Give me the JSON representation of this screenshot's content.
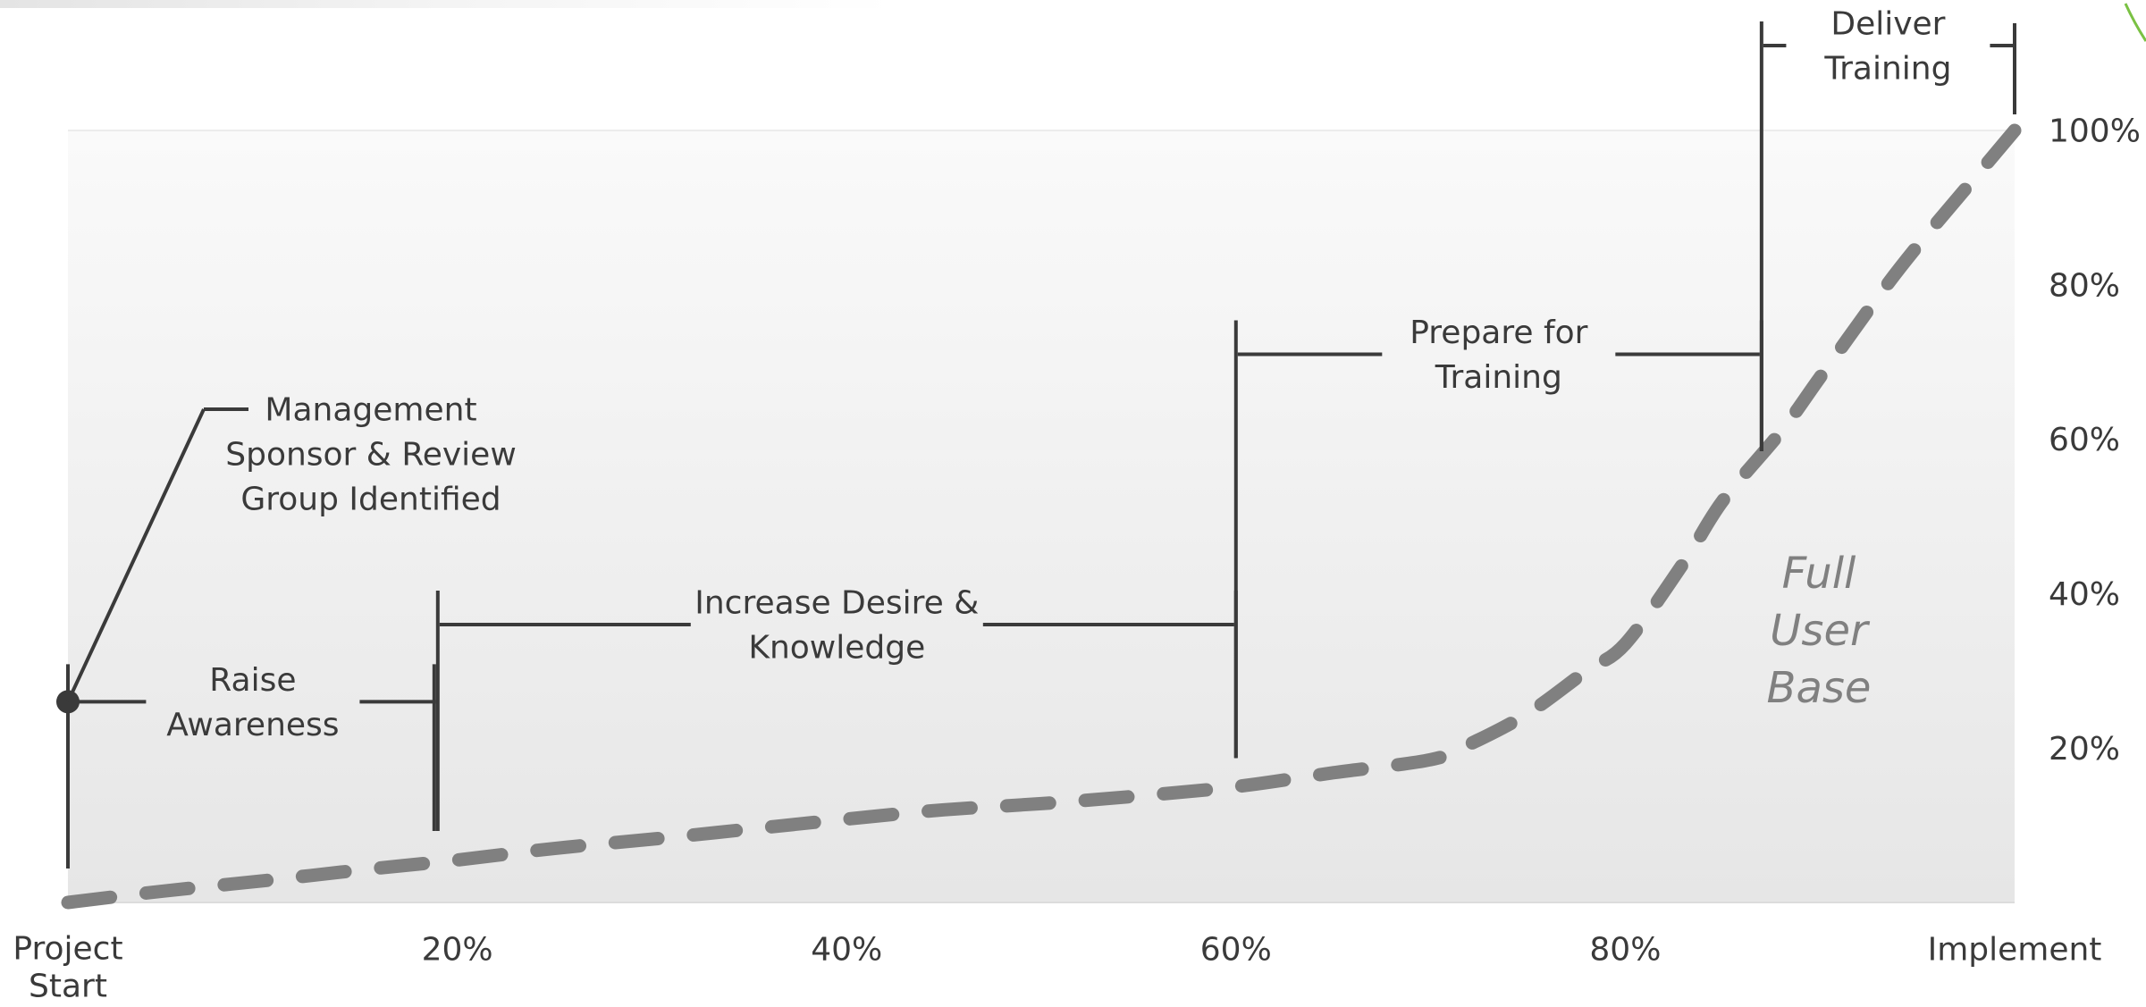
{
  "chart_data": {
    "type": "line",
    "title": "",
    "xlabel": "",
    "ylabel": "",
    "x_tick_labels": [
      [
        "Project",
        "Start"
      ],
      [
        "20%"
      ],
      [
        "40%"
      ],
      [
        "60%"
      ],
      [
        "80%"
      ],
      [
        "Implement"
      ]
    ],
    "y_tick_labels": [
      "20%",
      "40%",
      "60%",
      "80%",
      "100%"
    ],
    "xlim": [
      0,
      100
    ],
    "ylim": [
      0,
      100
    ],
    "grid": false,
    "line_style": "dashed",
    "colors": {
      "curve": "#808080",
      "bracket": "#3a3a3a",
      "label": "#3a3a3a",
      "curve_label": "#808080",
      "plot_bg_top": "#fafafa",
      "plot_bg_bottom": "#e6e6e6",
      "corner_accent": "#7ac143"
    },
    "series": [
      {
        "x": [
          0,
          5,
          10,
          15,
          20,
          25,
          30,
          35,
          40,
          45,
          50,
          55,
          60,
          65,
          70,
          72,
          75,
          78,
          80,
          83,
          85,
          88,
          90,
          93,
          95,
          98,
          100
        ],
        "y": [
          0,
          1.5,
          2.8,
          4.2,
          5.5,
          7,
          8.2,
          9.5,
          10.8,
          12,
          12.8,
          13.8,
          15,
          16.8,
          18.5,
          20.5,
          24.5,
          30,
          33.5,
          44,
          52,
          61,
          68,
          78.5,
          85,
          94,
          100
        ]
      }
    ],
    "annotations": [
      {
        "lines": [
          "Raise",
          "Awareness"
        ],
        "from": 0,
        "to": 19,
        "level": 26
      },
      {
        "lines": [
          "Increase Desire &",
          "Knowledge"
        ],
        "from": 19,
        "to": 60,
        "level": 36
      },
      {
        "lines": [
          "Prepare for",
          "Training"
        ],
        "from": 60,
        "to": 87,
        "level": 71
      },
      {
        "lines": [
          "Deliver",
          "Training"
        ],
        "from": 87,
        "to": 100,
        "level": 111
      },
      {
        "lines": [
          "Management",
          "Sponsor & Review",
          "Group Identified"
        ],
        "at": 0,
        "level": 26,
        "callout": true
      }
    ],
    "curve_label": [
      "Full",
      "User",
      "Base"
    ]
  }
}
